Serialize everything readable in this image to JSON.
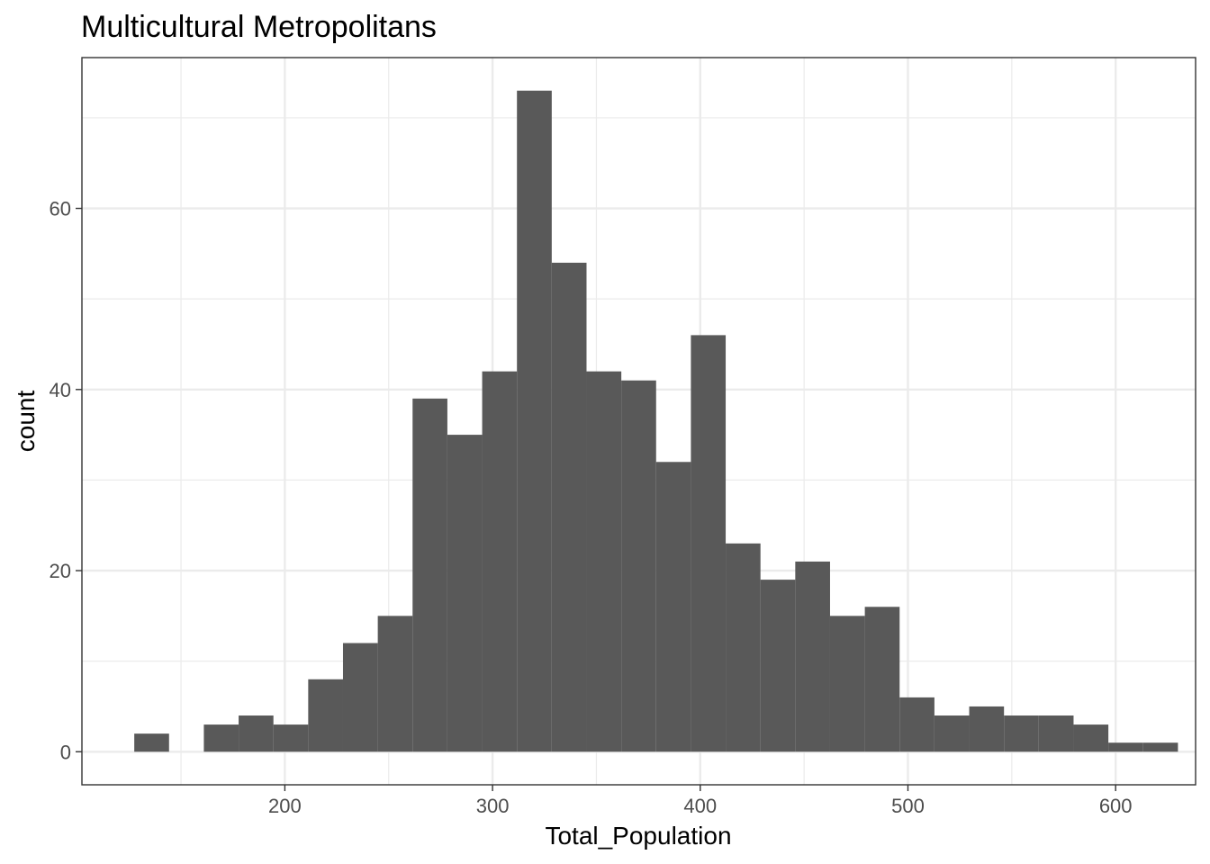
{
  "chart_data": {
    "type": "bar",
    "title": "Multicultural Metropolitans",
    "xlabel": "Total_Population",
    "ylabel": "count",
    "bin_width": 16.75,
    "bins": [
      {
        "start": 127.5,
        "count": 2
      },
      {
        "start": 144.25,
        "count": 0
      },
      {
        "start": 161.0,
        "count": 3
      },
      {
        "start": 177.75,
        "count": 4
      },
      {
        "start": 194.5,
        "count": 3
      },
      {
        "start": 211.25,
        "count": 8
      },
      {
        "start": 228.0,
        "count": 12
      },
      {
        "start": 244.75,
        "count": 15
      },
      {
        "start": 261.5,
        "count": 39
      },
      {
        "start": 278.25,
        "count": 35
      },
      {
        "start": 295.0,
        "count": 42
      },
      {
        "start": 311.75,
        "count": 73
      },
      {
        "start": 328.5,
        "count": 54
      },
      {
        "start": 345.25,
        "count": 42
      },
      {
        "start": 362.0,
        "count": 41
      },
      {
        "start": 378.75,
        "count": 32
      },
      {
        "start": 395.5,
        "count": 46
      },
      {
        "start": 412.25,
        "count": 23
      },
      {
        "start": 429.0,
        "count": 19
      },
      {
        "start": 445.75,
        "count": 21
      },
      {
        "start": 462.5,
        "count": 15
      },
      {
        "start": 479.25,
        "count": 16
      },
      {
        "start": 496.0,
        "count": 6
      },
      {
        "start": 512.75,
        "count": 4
      },
      {
        "start": 529.5,
        "count": 5
      },
      {
        "start": 546.25,
        "count": 4
      },
      {
        "start": 563.0,
        "count": 4
      },
      {
        "start": 579.75,
        "count": 3
      },
      {
        "start": 596.5,
        "count": 1
      },
      {
        "start": 613.25,
        "count": 1
      }
    ],
    "xlim": [
      102.3,
      638.5
    ],
    "ylim": [
      -3.65,
      76.65
    ],
    "x_ticks": [
      200,
      300,
      400,
      500,
      600
    ],
    "x_minor_ticks": [
      150,
      250,
      350,
      450,
      550
    ],
    "y_ticks": [
      0,
      20,
      40,
      60
    ],
    "y_minor_ticks": [
      10,
      30,
      50,
      70
    ],
    "grid": true,
    "bar_color": "#595959",
    "grid_color": "#ebebeb",
    "panel_border_color": "#333333"
  }
}
